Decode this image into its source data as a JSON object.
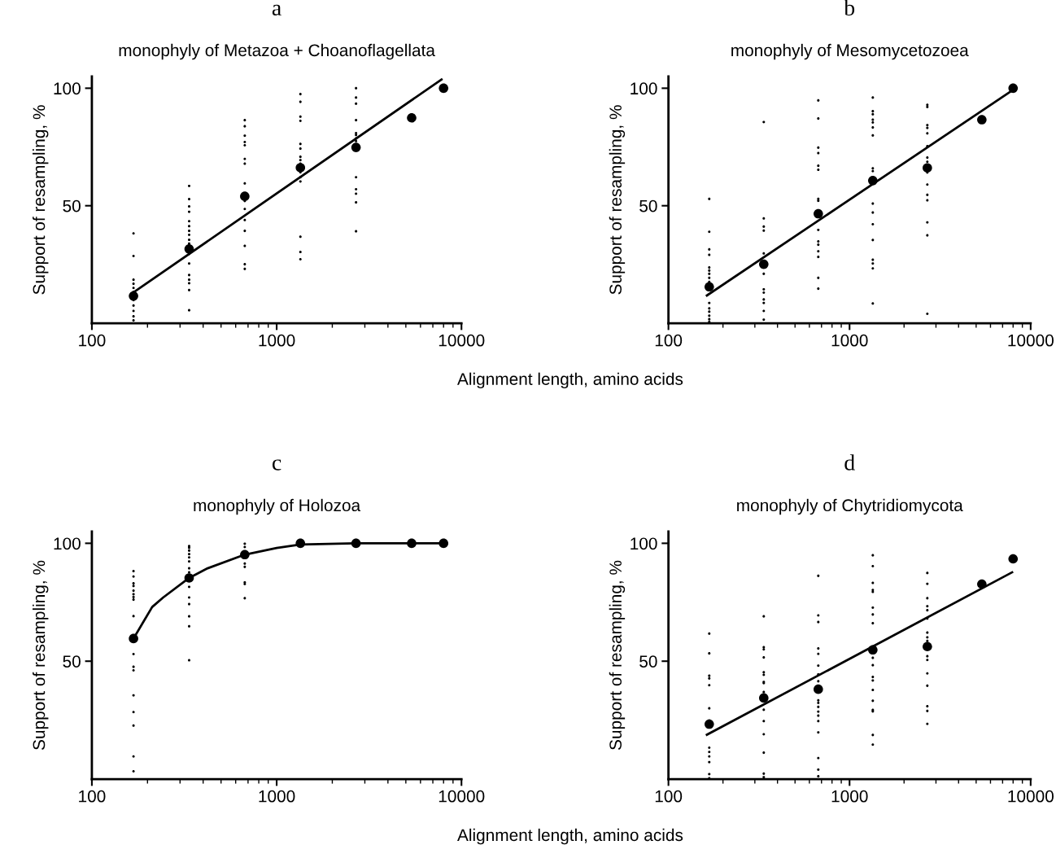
{
  "chart_data": [
    {
      "type": "scatter",
      "title": "a",
      "subtitle": "monophyly of Metazoa + Choanoflagellata",
      "xlabel": "Alignment length, amino acids",
      "ylabel": "Support of resampling, %",
      "log": "x",
      "xlim": [
        100,
        10000
      ],
      "xticks": [
        100,
        1000,
        10000
      ],
      "ylim": [
        0,
        105
      ],
      "yticks": [
        50,
        100
      ],
      "grid": false,
      "legend": false,
      "marker": "circle",
      "series": [
        {
          "color": "#000000",
          "x": [
            168,
            168,
            168,
            168,
            168,
            168,
            168,
            168,
            168,
            168,
            168,
            336,
            336,
            336,
            336,
            336,
            336,
            336,
            336,
            336,
            336,
            336,
            336,
            336,
            336,
            336,
            336,
            336,
            672,
            672,
            672,
            672,
            672,
            672,
            672,
            672,
            672,
            672,
            672,
            672,
            672,
            672,
            672,
            1344,
            1344,
            1344,
            1344,
            1344,
            1344,
            1344,
            1344,
            1344,
            1344,
            1344,
            1344,
            1344,
            1344,
            1344,
            2688,
            2688,
            2688,
            2688,
            2688,
            2688,
            2688,
            2688,
            2688,
            2688,
            2688,
            2688,
            2688
          ],
          "values": [
            38.2,
            28.6,
            18.5,
            16.8,
            15.0,
            13.3,
            9.8,
            7.5,
            5.2,
            2.9,
            1.2,
            58.4,
            52.8,
            49.7,
            47.4,
            43.4,
            41.3,
            39.3,
            37.6,
            35.5,
            33.9,
            29.5,
            25.4,
            20.5,
            18.5,
            17.0,
            14.1,
            5.5,
            86.4,
            83.8,
            79.8,
            77.1,
            75.7,
            69.9,
            67.9,
            59.5,
            52.0,
            48.6,
            43.9,
            39.3,
            32.9,
            25.1,
            23.1,
            97.5,
            94.2,
            87.9,
            86.1,
            76.3,
            74.3,
            70.8,
            69.4,
            67.9,
            64.2,
            62.1,
            60.3,
            36.8,
            30.3,
            27.2,
            100,
            96.0,
            93.4,
            86.4,
            80.9,
            80.1,
            78.6,
            77.5,
            62.1,
            57.0,
            55.1,
            51.4,
            39.1
          ]
        },
        {
          "color": "#000000",
          "x": [
            168,
            336,
            672,
            1344,
            2688,
            5376,
            8000
          ],
          "values": [
            11.6,
            31.6,
            54.0,
            66.2,
            74.8,
            87.4,
            100
          ]
        },
        {
          "type": "line",
          "marker": "none",
          "color": "#000000",
          "x": [
            165,
            7800
          ],
          "values": [
            12.7,
            103.7
          ]
        }
      ]
    },
    {
      "type": "scatter",
      "title": "b",
      "subtitle": "monophyly of Mesomycetozoea",
      "ylabel": "Support of resampling, %",
      "log": "x",
      "xlim": [
        100,
        10000
      ],
      "xticks": [
        100,
        1000,
        10000
      ],
      "ylim": [
        0,
        105
      ],
      "yticks": [
        50,
        100
      ],
      "grid": false,
      "legend": false,
      "marker": "circle",
      "series": [
        {
          "color": "#000000",
          "x": [
            168,
            168,
            168,
            168,
            168,
            168,
            168,
            168,
            168,
            168,
            168,
            168,
            168,
            168,
            168,
            336,
            336,
            336,
            336,
            336,
            336,
            336,
            336,
            336,
            336,
            336,
            336,
            672,
            672,
            672,
            672,
            672,
            672,
            672,
            672,
            672,
            672,
            672,
            672,
            672,
            672,
            672,
            1344,
            1344,
            1344,
            1344,
            1344,
            1344,
            1344,
            1344,
            1344,
            1344,
            1344,
            1344,
            1344,
            1344,
            1344,
            1344,
            1344,
            2688,
            2688,
            2688,
            2688,
            2688,
            2688,
            2688,
            2688,
            2688,
            2688,
            2688,
            2688,
            2688,
            2688,
            2688
          ],
          "values": [
            52.9,
            38.9,
            31.4,
            29.1,
            23.7,
            22.4,
            21.0,
            19.3,
            17.6,
            8.6,
            6.3,
            4.9,
            3.2,
            1.7,
            0.6,
            85.6,
            44.6,
            41.1,
            39.4,
            29.7,
            21.0,
            14.4,
            13.0,
            10.1,
            8.6,
            5.2,
            1.5,
            94.8,
            87.1,
            74.7,
            72.4,
            67.0,
            65.3,
            52.9,
            52.1,
            39.7,
            34.8,
            33.4,
            30.6,
            28.2,
            19.3,
            14.7,
            96.0,
            90.2,
            88.9,
            86.6,
            85.4,
            83.3,
            79.9,
            65.9,
            64.7,
            50.9,
            47.1,
            42.1,
            35.4,
            27.0,
            25.4,
            23.3,
            8.4,
            92.9,
            92.0,
            84.3,
            83.1,
            80.8,
            75.3,
            70.5,
            68.7,
            64.1,
            59.0,
            54.6,
            52.3,
            42.9,
            37.4,
            4.0
          ]
        },
        {
          "color": "#000000",
          "x": [
            168,
            336,
            672,
            1344,
            2688,
            5376,
            8000
          ],
          "values": [
            15.5,
            25.1,
            46.6,
            60.7,
            66.1,
            86.6,
            100
          ]
        },
        {
          "type": "line",
          "marker": "none",
          "color": "#000000",
          "x": [
            163,
            7750
          ],
          "values": [
            11.8,
            98.6
          ]
        }
      ]
    },
    {
      "type": "scatter",
      "title": "c",
      "subtitle": "monophyly of Holozoa",
      "xlabel": "Alignment length, amino acids",
      "ylabel": "Support of resampling, %",
      "log": "x",
      "xlim": [
        100,
        10000
      ],
      "xticks": [
        100,
        1000,
        10000
      ],
      "ylim": [
        0,
        105
      ],
      "yticks": [
        50,
        100
      ],
      "grid": false,
      "legend": false,
      "marker": "circle",
      "series": [
        {
          "color": "#000000",
          "x": [
            168,
            168,
            168,
            168,
            168,
            168,
            168,
            168,
            168,
            168,
            168,
            168,
            168,
            168,
            168,
            168,
            168,
            336,
            336,
            336,
            336,
            336,
            336,
            336,
            336,
            336,
            336,
            336,
            336,
            336,
            336,
            672,
            672,
            672,
            672,
            672,
            672,
            672
          ],
          "values": [
            88.2,
            85.9,
            83.0,
            81.9,
            79.9,
            78.4,
            77.2,
            76.1,
            69.1,
            53.0,
            47.6,
            46.1,
            35.5,
            28.4,
            22.7,
            9.6,
            3.3,
            98.8,
            98.1,
            96.9,
            95.4,
            94.0,
            92.3,
            89.4,
            87.7,
            81.5,
            77.0,
            74.2,
            69.0,
            64.8,
            50.4,
            99.8,
            98.4,
            91.4,
            90.0,
            83.4,
            82.7,
            76.7
          ]
        },
        {
          "color": "#000000",
          "x": [
            168,
            336,
            672,
            1344,
            2688,
            5376,
            8000
          ],
          "values": [
            59.6,
            85.3,
            95.2,
            100,
            100,
            100,
            100
          ]
        },
        {
          "type": "line",
          "marker": "none",
          "color": "#000000",
          "x": [
            168,
            212,
            243,
            336,
            423,
            672,
            1000,
            1344,
            2688,
            5376,
            8000
          ],
          "values": [
            59.6,
            73,
            77,
            85.3,
            89.4,
            95.2,
            98,
            99.5,
            100,
            100,
            100
          ]
        }
      ]
    },
    {
      "type": "scatter",
      "title": "d",
      "subtitle": "monophyly of Chytridiomycota",
      "ylabel": "Support of resampling, %",
      "log": "x",
      "xlim": [
        100,
        10000
      ],
      "xticks": [
        100,
        1000,
        10000
      ],
      "ylim": [
        0,
        105
      ],
      "yticks": [
        50,
        100
      ],
      "grid": false,
      "legend": false,
      "marker": "circle",
      "series": [
        {
          "color": "#000000",
          "x": [
            168,
            168,
            168,
            168,
            168,
            168,
            168,
            168,
            168,
            168,
            168,
            168,
            168,
            336,
            336,
            336,
            336,
            336,
            336,
            336,
            336,
            336,
            336,
            336,
            336,
            336,
            336,
            336,
            672,
            672,
            672,
            672,
            672,
            672,
            672,
            672,
            672,
            672,
            672,
            672,
            672,
            672,
            672,
            672,
            672,
            672,
            1344,
            1344,
            1344,
            1344,
            1344,
            1344,
            1344,
            1344,
            1344,
            1344,
            1344,
            1344,
            1344,
            1344,
            1344,
            1344,
            1344,
            1344,
            2688,
            2688,
            2688,
            2688,
            2688,
            2688,
            2688,
            2688,
            2688,
            2688,
            2688,
            2688,
            2688,
            2688,
            2688,
            2688
          ],
          "values": [
            61.7,
            53.3,
            43.8,
            42.7,
            39.8,
            30.0,
            24.8,
            13.3,
            11.5,
            9.6,
            7.2,
            2.1,
            0.3,
            69.0,
            55.9,
            55.0,
            51.6,
            45.3,
            44.2,
            41.2,
            40.7,
            36.9,
            29.4,
            24.6,
            19.0,
            11.2,
            2.3,
            0.8,
            86.2,
            69.4,
            66.6,
            55.4,
            53.1,
            48.1,
            44.4,
            41.5,
            33.4,
            32.3,
            30.6,
            28.6,
            26.9,
            24.6,
            19.8,
            8.9,
            4.0,
            1.2,
            94.9,
            90.3,
            83.2,
            80.2,
            79.4,
            72.7,
            69.8,
            66.1,
            51.4,
            48.3,
            43.3,
            41.8,
            37.8,
            33.2,
            29.3,
            28.7,
            18.7,
            14.6,
            87.4,
            82.8,
            76.7,
            73.3,
            71.6,
            68.1,
            62.1,
            60.1,
            58.6,
            52.1,
            50.5,
            44.8,
            39.6,
            30.9,
            28.9,
            23.4
          ]
        },
        {
          "color": "#000000",
          "x": [
            168,
            336,
            672,
            1344,
            2688,
            5376,
            8000
          ],
          "values": [
            23.3,
            34.4,
            38.1,
            54.8,
            56.2,
            82.7,
            93.4
          ]
        },
        {
          "type": "line",
          "marker": "none",
          "color": "#000000",
          "x": [
            163,
            7900
          ],
          "values": [
            18.8,
            87.7
          ]
        }
      ]
    }
  ]
}
